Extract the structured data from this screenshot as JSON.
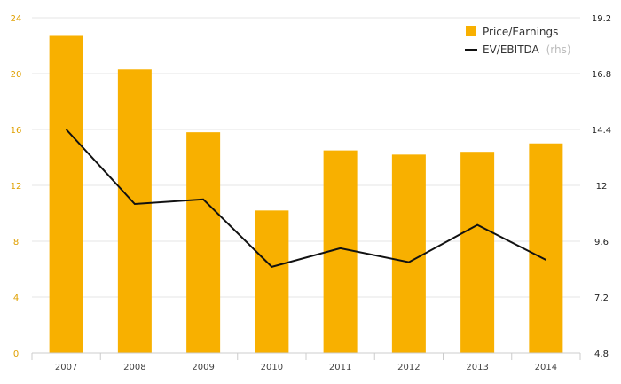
{
  "chart_data": {
    "type": "bar",
    "categories": [
      "2007",
      "2008",
      "2009",
      "2010",
      "2011",
      "2012",
      "2013",
      "2014"
    ],
    "series": [
      {
        "name": "Price/Earnings",
        "type": "bar",
        "axis": "left",
        "values": [
          22.7,
          20.3,
          15.8,
          10.2,
          14.5,
          14.2,
          14.4,
          15.0
        ]
      },
      {
        "name": "EV/EBITDA",
        "name_suffix": "(rhs)",
        "type": "line",
        "axis": "right",
        "values": [
          14.4,
          11.2,
          11.4,
          8.5,
          9.3,
          8.7,
          10.3,
          8.8
        ]
      }
    ],
    "ylim_left": [
      0,
      24
    ],
    "yticks_left": [
      "0",
      "4",
      "8",
      "12",
      "16",
      "20",
      "24"
    ],
    "ylim_right": [
      4.8,
      19.2
    ],
    "yticks_right": [
      "4.8",
      "7.2",
      "9.6",
      "12",
      "14.4",
      "16.8",
      "19.2"
    ],
    "grid": true,
    "legend_position": "top-right",
    "colors": {
      "bar": "#f8b000",
      "line": "#111111",
      "left_tick": "#e0a000",
      "grid": "#e6e6e6",
      "axis": "#cccccc"
    }
  }
}
